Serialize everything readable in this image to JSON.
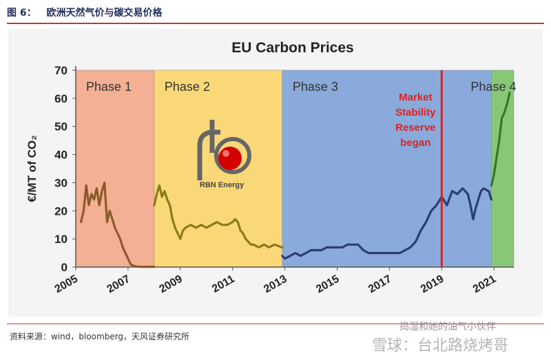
{
  "figure": {
    "label": "图 6：",
    "title": "欧洲天然气价与碳交易价格"
  },
  "source_note": "资料来源：wind，bloomberg，天风证券研究所",
  "watermark": {
    "line1": "捣湿和她的油气小伙伴",
    "line2": "雪球：台北路烧烤哥"
  },
  "logo": {
    "text": "RBN Energy"
  },
  "chart_data": {
    "type": "line",
    "title": "EU Carbon Prices",
    "xlabel": "",
    "ylabel": "€/MT of CO₂",
    "xlim": [
      2005,
      2021.6
    ],
    "ylim": [
      0,
      70
    ],
    "xticks": [
      "2005",
      "2007",
      "2009",
      "2011",
      "2013",
      "2015",
      "2017",
      "2019",
      "2021"
    ],
    "yticks": [
      "0",
      "10",
      "20",
      "30",
      "40",
      "50",
      "60",
      "70"
    ],
    "grid": false,
    "phases": [
      {
        "name": "Phase 1",
        "start": 2005,
        "end": 2008,
        "color": "#f4a98a"
      },
      {
        "name": "Phase 2",
        "start": 2008,
        "end": 2012.9,
        "color": "#fbd56b"
      },
      {
        "name": "Phase 3",
        "start": 2012.9,
        "end": 2020.9,
        "color": "#7fa3d9"
      },
      {
        "name": "Phase 4",
        "start": 2020.9,
        "end": 2021.8,
        "color": "#7cc36a"
      }
    ],
    "annotation": {
      "text": [
        "Market",
        "Stability",
        "Reserve",
        "began"
      ],
      "x": 2019.0,
      "color": "#e02020"
    },
    "series": [
      {
        "color": "#8a5a2b",
        "x": [
          2005.2,
          2005.3,
          2005.4,
          2005.5,
          2005.6,
          2005.7,
          2005.8,
          2005.9,
          2006.0,
          2006.1,
          2006.2,
          2006.3,
          2006.4,
          2006.5,
          2006.6,
          2006.7,
          2006.8,
          2006.9,
          2007.0,
          2007.1,
          2007.2,
          2007.3,
          2007.5,
          2007.7,
          2008.0
        ],
        "y": [
          16,
          20,
          29,
          22,
          26,
          24,
          28,
          22,
          27,
          30,
          16,
          20,
          17,
          14,
          12,
          10,
          7,
          5,
          3,
          1,
          0.5,
          0.2,
          0.1,
          0.1,
          0.1
        ]
      },
      {
        "color": "#8a7a1b",
        "x": [
          2008.0,
          2008.1,
          2008.2,
          2008.3,
          2008.4,
          2008.5,
          2008.6,
          2008.7,
          2008.8,
          2008.9,
          2009.0,
          2009.1,
          2009.2,
          2009.4,
          2009.6,
          2009.8,
          2010.0,
          2010.2,
          2010.4,
          2010.6,
          2010.8,
          2011.0,
          2011.1,
          2011.2,
          2011.3,
          2011.4,
          2011.5,
          2011.6,
          2011.7,
          2011.8,
          2012.0,
          2012.2,
          2012.4,
          2012.6,
          2012.9
        ],
        "y": [
          22,
          26,
          29,
          25,
          27,
          24,
          22,
          17,
          14,
          12,
          10,
          13,
          14,
          15,
          14,
          15,
          14,
          15,
          16,
          15,
          15,
          16,
          17,
          16,
          13,
          12,
          10,
          9,
          8,
          8,
          7,
          8,
          7,
          8,
          7
        ]
      },
      {
        "color": "#2a3f6e",
        "x": [
          2012.9,
          2013.0,
          2013.2,
          2013.4,
          2013.6,
          2013.8,
          2014.0,
          2014.2,
          2014.4,
          2014.6,
          2014.8,
          2015.0,
          2015.2,
          2015.4,
          2015.6,
          2015.8,
          2016.0,
          2016.2,
          2016.4,
          2016.6,
          2016.8,
          2017.0,
          2017.2,
          2017.4,
          2017.6,
          2017.8,
          2018.0,
          2018.2,
          2018.4,
          2018.6,
          2018.8,
          2019.0,
          2019.2,
          2019.4,
          2019.6,
          2019.8,
          2020.0,
          2020.1,
          2020.2,
          2020.3,
          2020.4,
          2020.5,
          2020.6,
          2020.8,
          2020.9
        ],
        "y": [
          4,
          3,
          4,
          5,
          4,
          5,
          6,
          6,
          6,
          7,
          7,
          7,
          7,
          8,
          8,
          8,
          6,
          5,
          5,
          5,
          5,
          5,
          5,
          5,
          6,
          7,
          9,
          13,
          16,
          20,
          22,
          25,
          22,
          27,
          26,
          28,
          26,
          22,
          17,
          21,
          24,
          27,
          28,
          27,
          24
        ]
      },
      {
        "color": "#2f7a2a",
        "x": [
          2020.9,
          2021.0,
          2021.1,
          2021.2,
          2021.3,
          2021.4,
          2021.5,
          2021.6
        ],
        "y": [
          29,
          33,
          39,
          45,
          53,
          55,
          58,
          62
        ]
      }
    ]
  }
}
